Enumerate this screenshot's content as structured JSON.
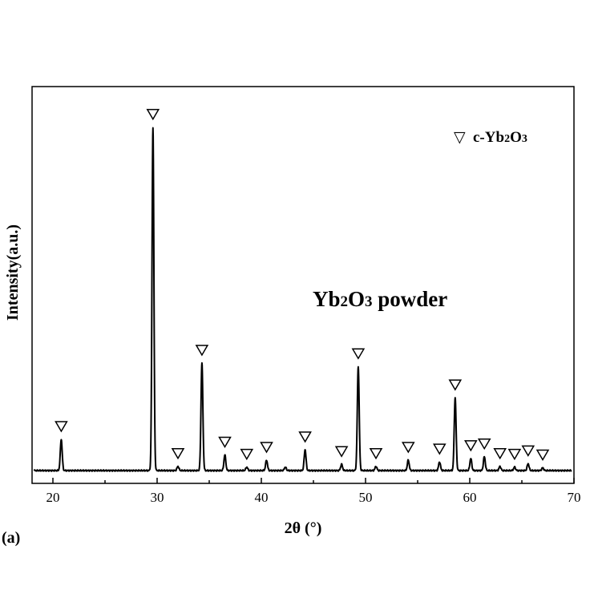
{
  "chart_data": {
    "type": "line",
    "panel_label": "(a)",
    "xlabel": "2θ (°)",
    "ylabel": "Intensity(a.u.)",
    "xlim": [
      18,
      70
    ],
    "ylim": [
      0,
      1.05
    ],
    "x_ticks": [
      20,
      30,
      40,
      50,
      60,
      70
    ],
    "grid": false,
    "legend": {
      "placement": "top-right",
      "entries": [
        {
          "marker": "▽",
          "label_parts": [
            "c-Yb",
            "2",
            "O",
            "3"
          ]
        }
      ]
    },
    "annotation": {
      "parts": [
        "Yb",
        "2",
        "O",
        "3",
        " powder"
      ]
    },
    "baseline": 0.04,
    "peaks": [
      {
        "x": 20.8,
        "height": 0.09,
        "marker": true
      },
      {
        "x": 29.6,
        "height": 0.99,
        "marker": true
      },
      {
        "x": 32.0,
        "height": 0.012,
        "marker": true
      },
      {
        "x": 34.3,
        "height": 0.31,
        "marker": true
      },
      {
        "x": 36.5,
        "height": 0.045,
        "marker": true
      },
      {
        "x": 38.6,
        "height": 0.01,
        "marker": true
      },
      {
        "x": 40.5,
        "height": 0.03,
        "marker": true
      },
      {
        "x": 42.3,
        "height": 0.01,
        "marker": false
      },
      {
        "x": 44.2,
        "height": 0.06,
        "marker": true
      },
      {
        "x": 47.7,
        "height": 0.018,
        "marker": true
      },
      {
        "x": 49.3,
        "height": 0.3,
        "marker": true
      },
      {
        "x": 51.0,
        "height": 0.012,
        "marker": true
      },
      {
        "x": 54.1,
        "height": 0.03,
        "marker": true
      },
      {
        "x": 57.1,
        "height": 0.025,
        "marker": true
      },
      {
        "x": 58.6,
        "height": 0.21,
        "marker": true
      },
      {
        "x": 60.1,
        "height": 0.035,
        "marker": true
      },
      {
        "x": 61.4,
        "height": 0.04,
        "marker": true
      },
      {
        "x": 62.9,
        "height": 0.012,
        "marker": true
      },
      {
        "x": 64.3,
        "height": 0.01,
        "marker": true
      },
      {
        "x": 65.6,
        "height": 0.02,
        "marker": true
      },
      {
        "x": 67.0,
        "height": 0.008,
        "marker": true
      }
    ],
    "colors": {
      "line": "#000000",
      "axes": "#000000",
      "background": "#ffffff"
    }
  }
}
